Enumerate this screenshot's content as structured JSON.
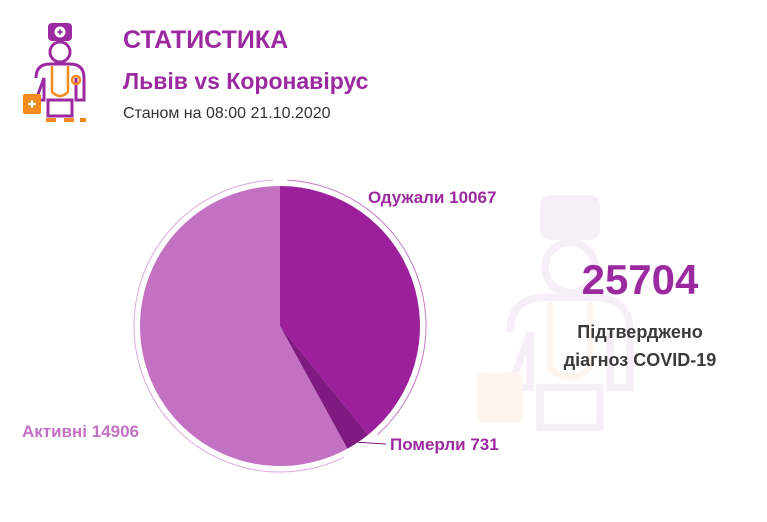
{
  "header": {
    "title": "СТАТИСТИКА",
    "subtitle": "Львів vs Коронавірус",
    "as_of": "Станом на 08:00 21.10.2020"
  },
  "summary": {
    "total": "25704",
    "label_line1": "Підтверджено",
    "label_line2": "діагноз COVID-19"
  },
  "colors": {
    "accent": "#9b2aa0",
    "recovered": "#9c1f9c",
    "deaths": "#7e1a80",
    "active": "#c271c3",
    "logo_orange": "#f28a1c"
  },
  "chart_data": {
    "type": "pie",
    "title": "",
    "slices": [
      {
        "name": "Одужали",
        "value": 10067,
        "label": "Одужали 10067",
        "color": "#9c1f9c"
      },
      {
        "name": "Померли",
        "value": 731,
        "label": "Померли 731",
        "color": "#7e1a80"
      },
      {
        "name": "Активні",
        "value": 14906,
        "label": "Активні 14906",
        "color": "#c271c3"
      }
    ]
  }
}
